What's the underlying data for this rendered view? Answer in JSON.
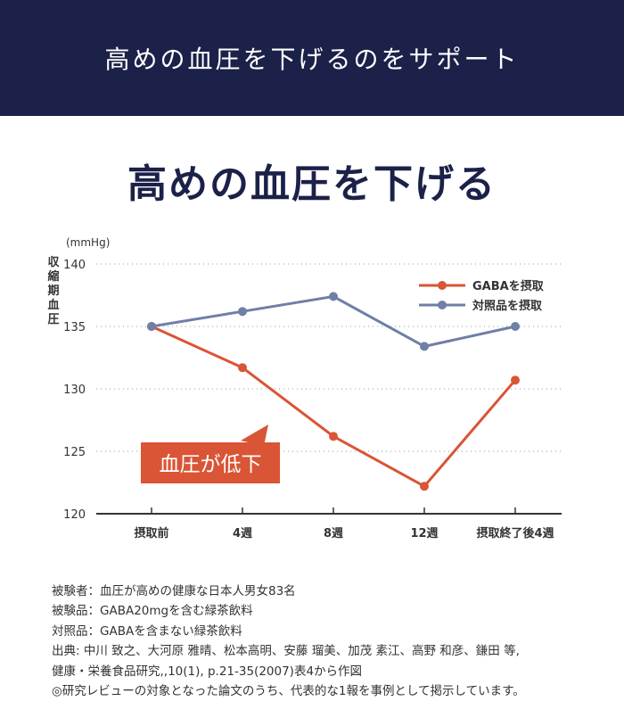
{
  "banner": {
    "text": "高めの血圧を下げるのをサポート"
  },
  "title": "高めの血圧を下げる",
  "chart_data": {
    "type": "line",
    "title": "",
    "unit_label": "(mmHg)",
    "ylabel": "収縮期血圧",
    "categories": [
      "摂取前",
      "4週",
      "8週",
      "12週",
      "摂取終了後4週"
    ],
    "ylim": [
      120,
      140
    ],
    "yticks": [
      120,
      125,
      130,
      135,
      140
    ],
    "grid": true,
    "legend_position": "top-right",
    "series": [
      {
        "name": "GABAを摂取",
        "color": "#d95535",
        "values": [
          135.0,
          131.7,
          126.2,
          122.2,
          130.7
        ]
      },
      {
        "name": "対照品を摂取",
        "color": "#6f7fa6",
        "values": [
          135.0,
          136.2,
          137.4,
          133.4,
          135.0
        ]
      }
    ],
    "annotation": {
      "text": "血圧が低下",
      "color": "#d95535"
    }
  },
  "notes": [
    "被験者：血圧が高めの健康な日本人男女83名",
    "被験品：GABA20mgを含む緑茶飲料",
    "対照品：GABAを含まない緑茶飲料",
    "出典: 中川 致之、大河原 雅晴、松本高明、安藤 瑠美、加茂 素江、高野 和彦、鎌田 等,",
    "健康・栄養食品研究,,10(1), p.21-35(2007)表4から作図",
    "◎研究レビューの対象となった論文のうち、代表的な1報を事例として掲示しています。"
  ]
}
